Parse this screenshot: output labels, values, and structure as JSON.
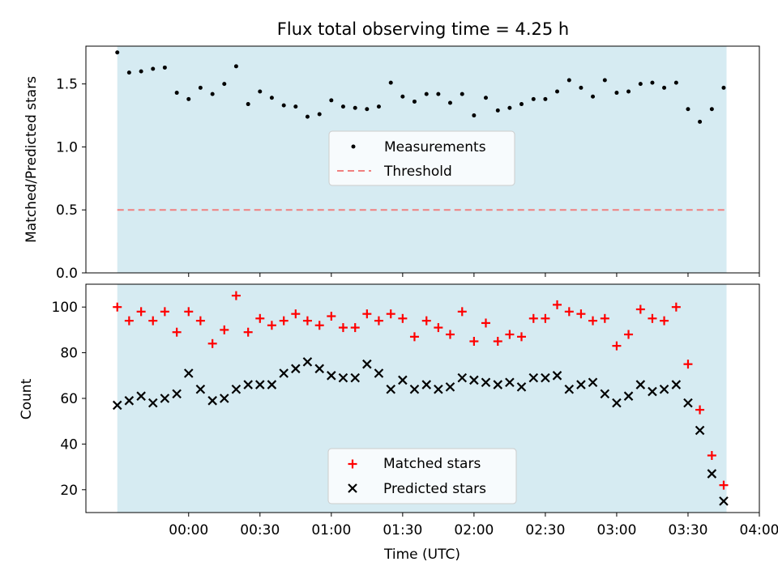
{
  "title": "Flux total observing time = 4.25 h",
  "colors": {
    "shade": "#add8e6",
    "matched": "#ff0000",
    "predicted": "#000000",
    "measurement": "#000000",
    "threshold": "#f08080"
  },
  "chart_data": [
    {
      "type": "scatter",
      "ylabel": "Matched/Predicted stars",
      "xlabel": "",
      "ylim": [
        0,
        1.8
      ],
      "xlim": [
        -0.72,
        4.0
      ],
      "ytick_labels": [
        "0.0",
        "0.5",
        "1.0",
        "1.5"
      ],
      "shaded_span": [
        -0.5,
        3.77
      ],
      "legend": {
        "placement": "center",
        "entries": [
          "Measurements",
          "Threshold"
        ]
      },
      "threshold": {
        "name": "Threshold",
        "y": 0.5,
        "x_range": [
          -0.5,
          3.77
        ],
        "style": "dashed"
      },
      "series": [
        {
          "name": "Measurements",
          "marker": "dot",
          "x": [
            -0.5,
            -0.417,
            -0.333,
            -0.25,
            -0.167,
            -0.083,
            0.0,
            0.083,
            0.167,
            0.25,
            0.333,
            0.417,
            0.5,
            0.583,
            0.667,
            0.75,
            0.833,
            0.917,
            1.0,
            1.083,
            1.167,
            1.25,
            1.333,
            1.417,
            1.5,
            1.583,
            1.667,
            1.75,
            1.833,
            1.917,
            2.0,
            2.083,
            2.167,
            2.25,
            2.333,
            2.417,
            2.5,
            2.583,
            2.667,
            2.75,
            2.833,
            2.917,
            3.0,
            3.083,
            3.167,
            3.25,
            3.333,
            3.417,
            3.5,
            3.583,
            3.667,
            3.75
          ],
          "y": [
            1.75,
            1.59,
            1.6,
            1.62,
            1.63,
            1.43,
            1.38,
            1.47,
            1.42,
            1.5,
            1.64,
            1.34,
            1.44,
            1.39,
            1.33,
            1.32,
            1.24,
            1.26,
            1.37,
            1.32,
            1.31,
            1.3,
            1.32,
            1.51,
            1.4,
            1.36,
            1.42,
            1.42,
            1.35,
            1.42,
            1.25,
            1.39,
            1.29,
            1.31,
            1.34,
            1.38,
            1.38,
            1.44,
            1.53,
            1.47,
            1.4,
            1.53,
            1.43,
            1.44,
            1.5,
            1.51,
            1.47,
            1.51,
            1.3,
            1.2,
            1.3,
            1.47
          ]
        }
      ]
    },
    {
      "type": "scatter",
      "ylabel": "Count",
      "xlabel": "Time (UTC)",
      "ylim": [
        10,
        110
      ],
      "xlim": [
        -0.72,
        4.0
      ],
      "ytick_labels": [
        "20",
        "40",
        "60",
        "80",
        "100"
      ],
      "xtick_labels": [
        "00:00",
        "00:30",
        "01:00",
        "01:30",
        "02:00",
        "02:30",
        "03:00",
        "03:30",
        "04:00"
      ],
      "shaded_span": [
        -0.5,
        3.77
      ],
      "legend": {
        "placement": "lower center",
        "entries": [
          "Matched stars",
          "Predicted stars"
        ]
      },
      "series": [
        {
          "name": "Matched stars",
          "marker": "plus",
          "x": [
            -0.5,
            -0.417,
            -0.333,
            -0.25,
            -0.167,
            -0.083,
            0.0,
            0.083,
            0.167,
            0.25,
            0.333,
            0.417,
            0.5,
            0.583,
            0.667,
            0.75,
            0.833,
            0.917,
            1.0,
            1.083,
            1.167,
            1.25,
            1.333,
            1.417,
            1.5,
            1.583,
            1.667,
            1.75,
            1.833,
            1.917,
            2.0,
            2.083,
            2.167,
            2.25,
            2.333,
            2.417,
            2.5,
            2.583,
            2.667,
            2.75,
            2.833,
            2.917,
            3.0,
            3.083,
            3.167,
            3.25,
            3.333,
            3.417,
            3.5,
            3.583,
            3.667,
            3.75
          ],
          "y": [
            100,
            94,
            98,
            94,
            98,
            89,
            98,
            94,
            84,
            90,
            105,
            89,
            95,
            92,
            94,
            97,
            94,
            92,
            96,
            91,
            91,
            97,
            94,
            97,
            95,
            87,
            94,
            91,
            88,
            98,
            85,
            93,
            85,
            88,
            87,
            95,
            95,
            101,
            98,
            97,
            94,
            95,
            83,
            88,
            99,
            95,
            94,
            100,
            75,
            55,
            35,
            22
          ]
        },
        {
          "name": "Predicted stars",
          "marker": "x",
          "x": [
            -0.5,
            -0.417,
            -0.333,
            -0.25,
            -0.167,
            -0.083,
            0.0,
            0.083,
            0.167,
            0.25,
            0.333,
            0.417,
            0.5,
            0.583,
            0.667,
            0.75,
            0.833,
            0.917,
            1.0,
            1.083,
            1.167,
            1.25,
            1.333,
            1.417,
            1.5,
            1.583,
            1.667,
            1.75,
            1.833,
            1.917,
            2.0,
            2.083,
            2.167,
            2.25,
            2.333,
            2.417,
            2.5,
            2.583,
            2.667,
            2.75,
            2.833,
            2.917,
            3.0,
            3.083,
            3.167,
            3.25,
            3.333,
            3.417,
            3.5,
            3.583,
            3.667,
            3.75
          ],
          "y": [
            57,
            59,
            61,
            58,
            60,
            62,
            71,
            64,
            59,
            60,
            64,
            66,
            66,
            66,
            71,
            73,
            76,
            73,
            70,
            69,
            69,
            75,
            71,
            64,
            68,
            64,
            66,
            64,
            65,
            69,
            68,
            67,
            66,
            67,
            65,
            69,
            69,
            70,
            64,
            66,
            67,
            62,
            58,
            61,
            66,
            63,
            64,
            66,
            58,
            46,
            27,
            15
          ]
        }
      ]
    }
  ]
}
